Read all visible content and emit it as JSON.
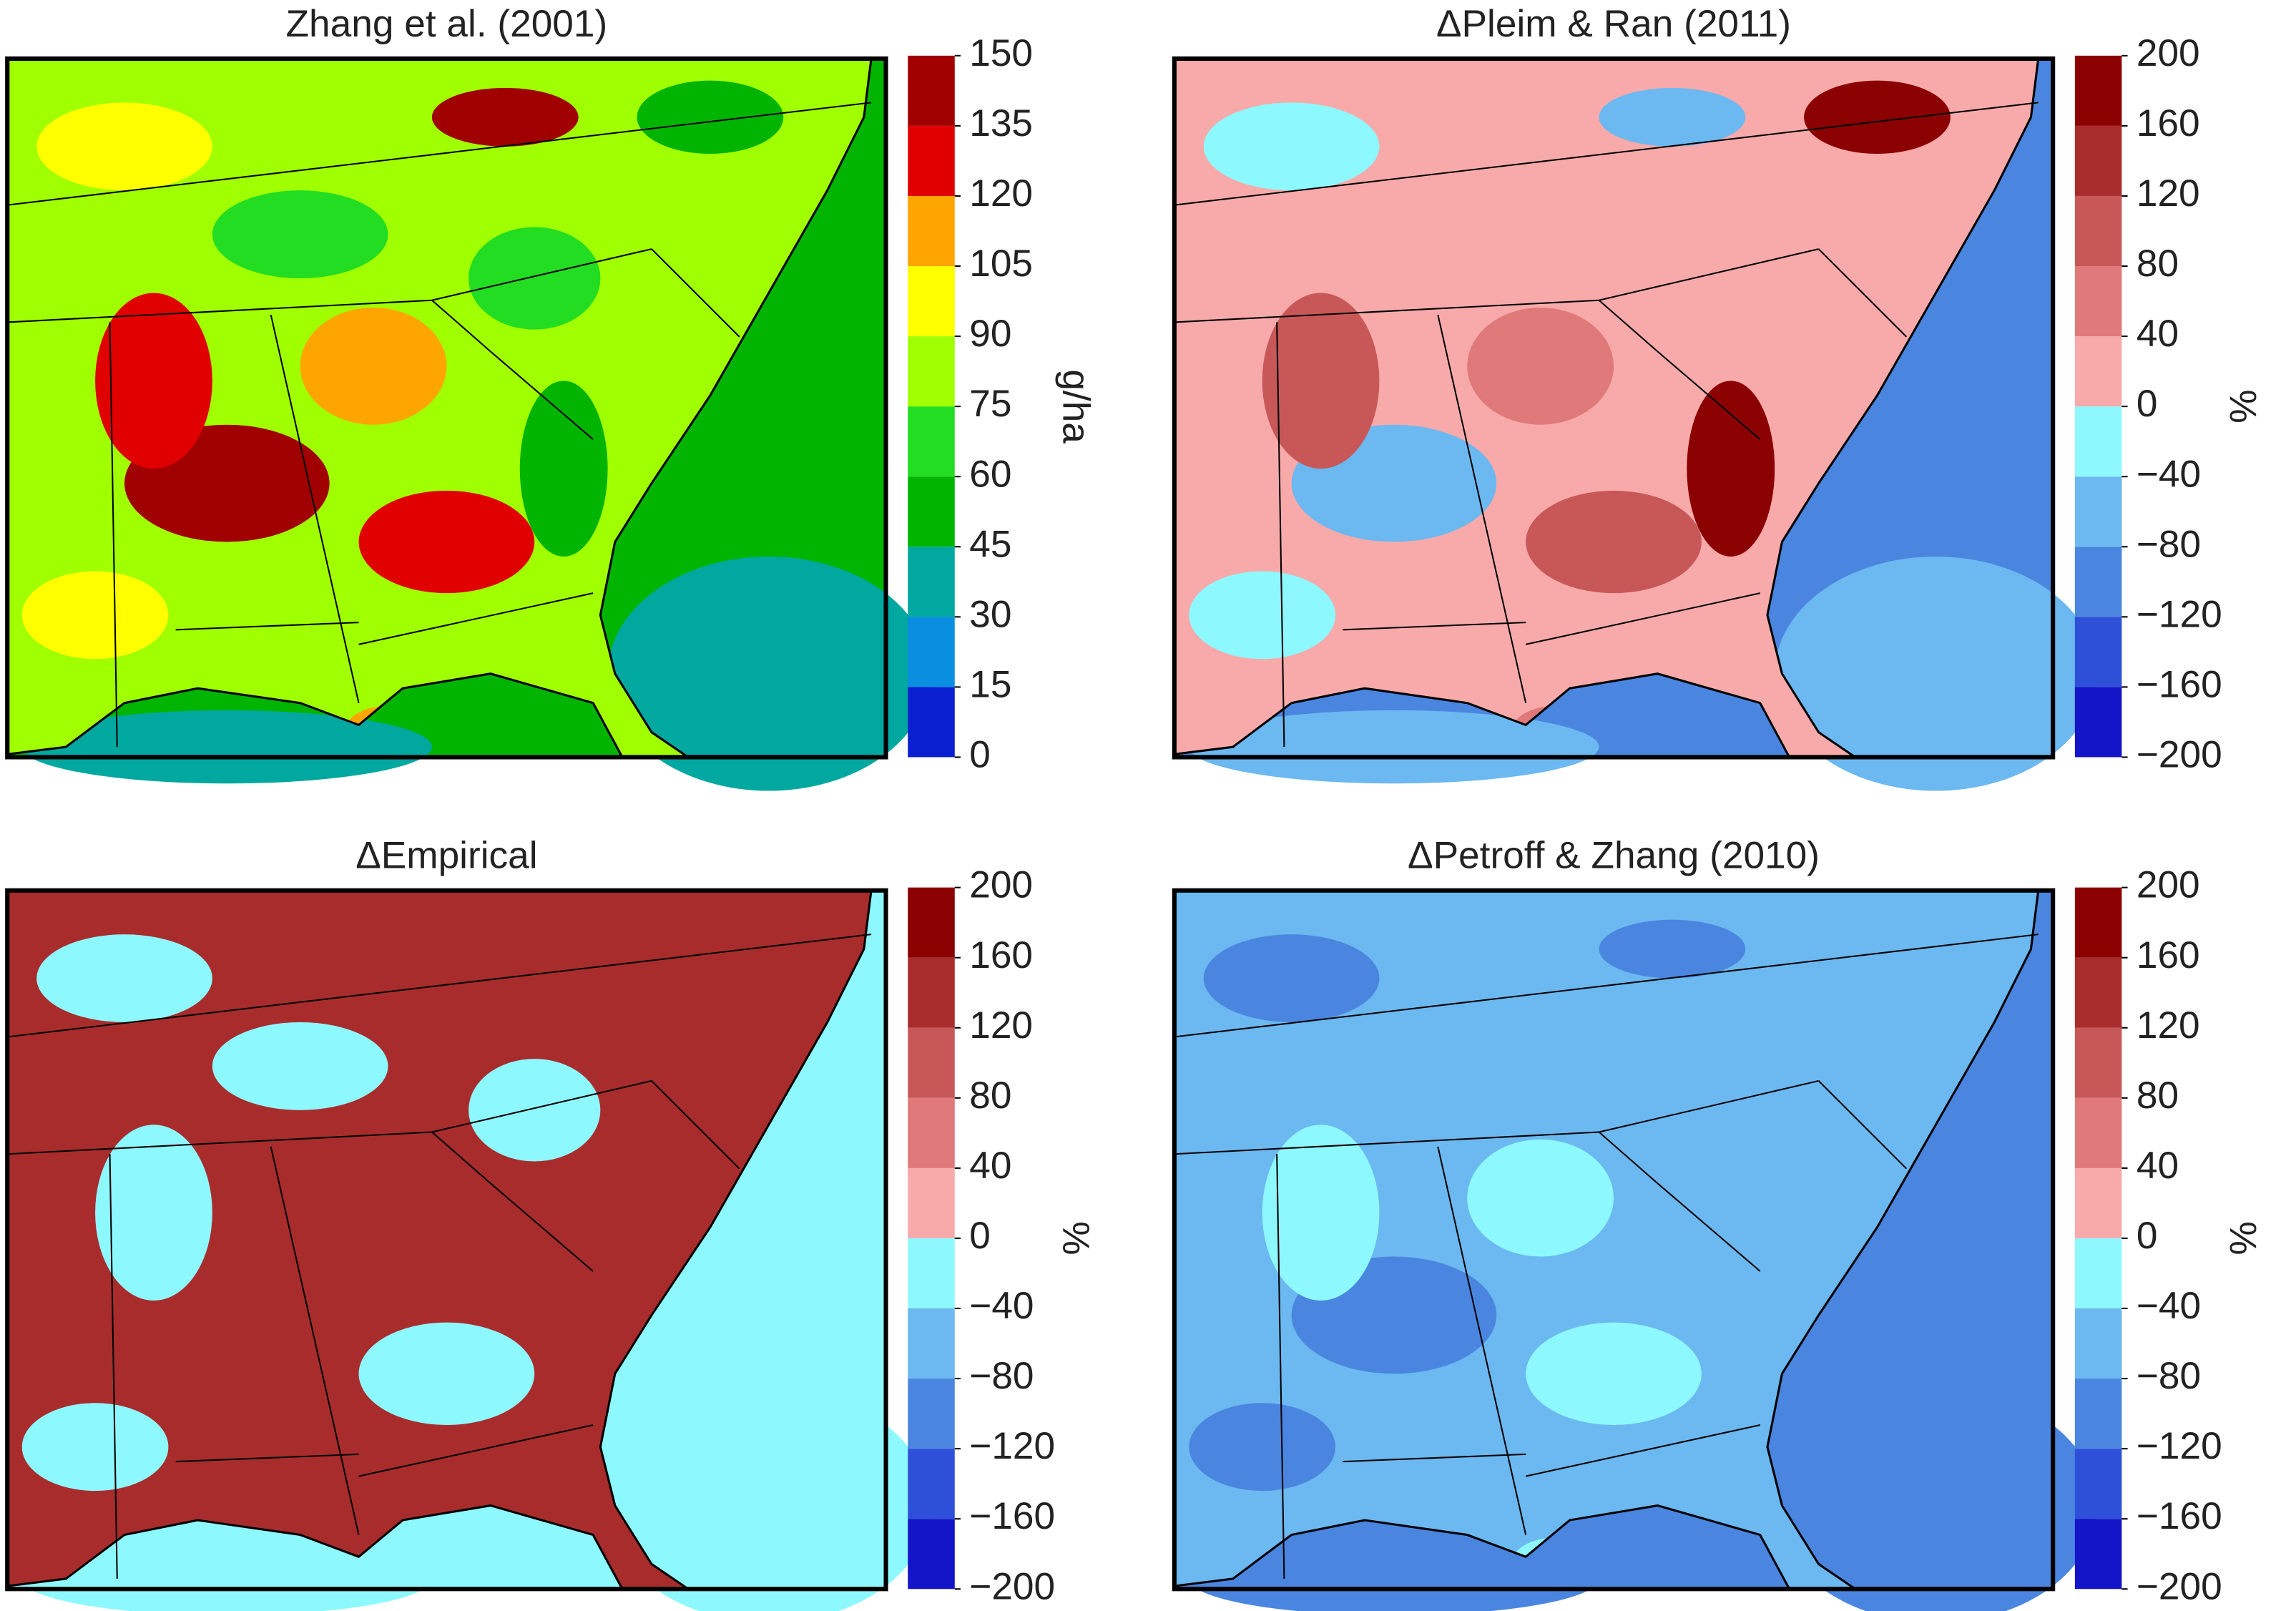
{
  "panels": [
    {
      "title": "Zhang et al. (2001)",
      "colorbar": {
        "label": "g/ha",
        "ticks": [
          0,
          15,
          30,
          45,
          60,
          75,
          90,
          105,
          120,
          135,
          150
        ],
        "colors": [
          "#0a1fd0",
          "#0a8ee0",
          "#00a8a0",
          "#00b400",
          "#22dd22",
          "#a0ff00",
          "#ffff00",
          "#ffa500",
          "#e00000",
          "#a00000"
        ]
      }
    },
    {
      "title": "ΔPleim & Ran (2011)",
      "colorbar": {
        "label": "%",
        "ticks": [
          {
            "value": -200,
            "label": "−200"
          },
          {
            "value": -160,
            "label": "−160"
          },
          {
            "value": -120,
            "label": "−120"
          },
          {
            "value": -80,
            "label": "−80"
          },
          {
            "value": -40,
            "label": "−40"
          },
          0,
          40,
          80,
          120,
          160,
          200
        ],
        "colors": [
          "#1414c8",
          "#2e50d8",
          "#4a86e0",
          "#6cb8f0",
          "#8ef8ff",
          "#f8aaaa",
          "#e07a7a",
          "#c85858",
          "#a82c2c",
          "#8b0000"
        ]
      }
    },
    {
      "title": "ΔEmpirical",
      "colorbar": {
        "label": "%",
        "ticks": [
          {
            "value": -200,
            "label": "−200"
          },
          {
            "value": -160,
            "label": "−160"
          },
          {
            "value": -120,
            "label": "−120"
          },
          {
            "value": -80,
            "label": "−80"
          },
          {
            "value": -40,
            "label": "−40"
          },
          0,
          40,
          80,
          120,
          160,
          200
        ],
        "colors": [
          "#1414c8",
          "#2e50d8",
          "#4a86e0",
          "#6cb8f0",
          "#8ef8ff",
          "#f8aaaa",
          "#e07a7a",
          "#c85858",
          "#a82c2c",
          "#8b0000"
        ]
      }
    },
    {
      "title": "ΔPetroff & Zhang (2010)",
      "colorbar": {
        "label": "%",
        "ticks": [
          {
            "value": -200,
            "label": "−200"
          },
          {
            "value": -160,
            "label": "−160"
          },
          {
            "value": -120,
            "label": "−120"
          },
          {
            "value": -80,
            "label": "−80"
          },
          {
            "value": -40,
            "label": "−40"
          },
          0,
          40,
          80,
          120,
          160,
          200
        ],
        "colors": [
          "#1414c8",
          "#2e50d8",
          "#4a86e0",
          "#6cb8f0",
          "#8ef8ff",
          "#f8aaaa",
          "#e07a7a",
          "#c85858",
          "#a82c2c",
          "#8b0000"
        ]
      }
    }
  ]
}
